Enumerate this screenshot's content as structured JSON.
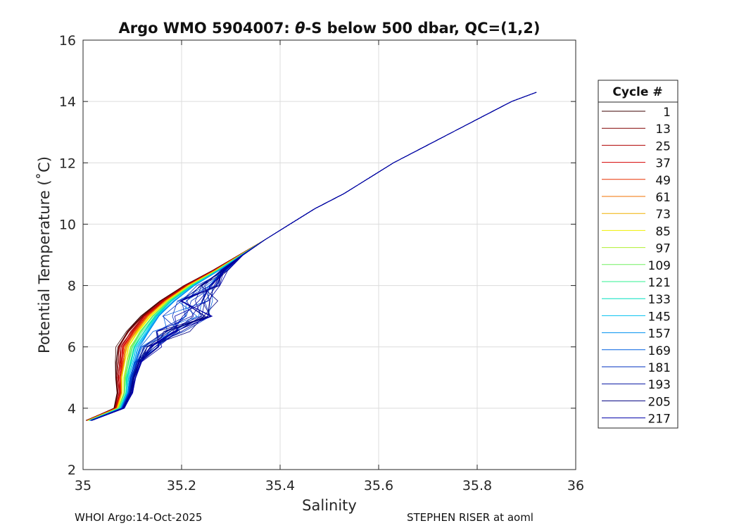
{
  "chart_data": {
    "type": "line",
    "title_prefix": "Argo WMO 5904007: ",
    "title_theta": "θ",
    "title_suffix": "-S below 500 dbar,  QC=(1,2)",
    "xlabel": "Salinity",
    "ylabel": "Potential Temperature (˚C)",
    "xlim": [
      35,
      36
    ],
    "ylim": [
      2,
      16
    ],
    "xticks": [
      35,
      35.2,
      35.4,
      35.6,
      35.8,
      36
    ],
    "xtick_labels": [
      "35",
      "35.2",
      "35.4",
      "35.6",
      "35.8",
      "36"
    ],
    "yticks": [
      2,
      4,
      6,
      8,
      10,
      12,
      14,
      16
    ],
    "ytick_labels": [
      "2",
      "4",
      "6",
      "8",
      "10",
      "12",
      "14",
      "16"
    ],
    "grid": true,
    "legend_title": "Cycle #",
    "legend_position": "outside-right",
    "series": [
      {
        "name": "1",
        "color": "#3d0000"
      },
      {
        "name": "13",
        "color": "#800000"
      },
      {
        "name": "25",
        "color": "#b00000"
      },
      {
        "name": "37",
        "color": "#d40000"
      },
      {
        "name": "49",
        "color": "#e83000"
      },
      {
        "name": "61",
        "color": "#f07000"
      },
      {
        "name": "73",
        "color": "#f0b000"
      },
      {
        "name": "85",
        "color": "#f0f000"
      },
      {
        "name": "97",
        "color": "#b0f030"
      },
      {
        "name": "109",
        "color": "#70f060"
      },
      {
        "name": "121",
        "color": "#30f090"
      },
      {
        "name": "133",
        "color": "#00e0c0"
      },
      {
        "name": "145",
        "color": "#00c0f0"
      },
      {
        "name": "157",
        "color": "#0090f0"
      },
      {
        "name": "169",
        "color": "#0060e0"
      },
      {
        "name": "181",
        "color": "#0030c0"
      },
      {
        "name": "193",
        "color": "#0010a0"
      },
      {
        "name": "205",
        "color": "#000080"
      },
      {
        "name": "217",
        "color": "#0000a8"
      }
    ],
    "profile_template": {
      "temperature": [
        3.6,
        3.8,
        4.0,
        4.5,
        5.0,
        5.5,
        6.0,
        6.5,
        7.0,
        7.5,
        8.0,
        8.5,
        9.0,
        9.5,
        10.0,
        10.5,
        11.0,
        11.5,
        12.0,
        12.5,
        13.0,
        13.5,
        14.0,
        14.3
      ],
      "salinity": [
        35.01,
        35.04,
        35.07,
        35.08,
        35.08,
        35.085,
        35.09,
        35.11,
        35.135,
        35.17,
        35.215,
        35.27,
        35.32,
        35.37,
        35.42,
        35.47,
        35.53,
        35.58,
        35.63,
        35.69,
        35.75,
        35.81,
        35.87,
        35.92
      ]
    }
  },
  "footer": {
    "left": "WHOI Argo:14-Oct-2025",
    "right": "STEPHEN RISER at aoml"
  }
}
